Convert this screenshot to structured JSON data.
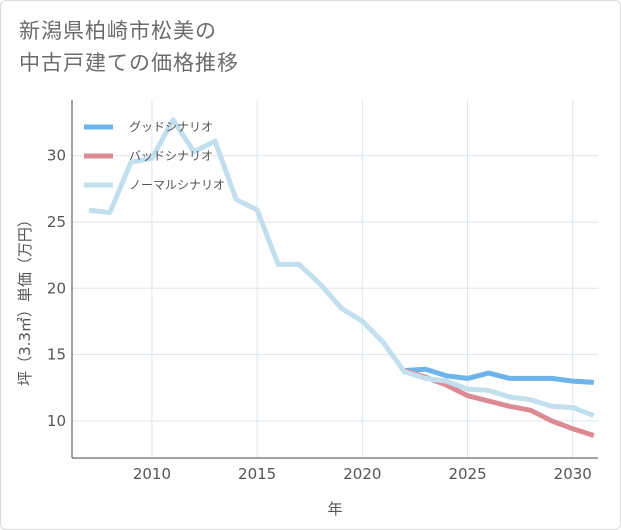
{
  "title": "新潟県柏崎市松美の\n中古戸建ての価格推移",
  "chart_data": {
    "type": "line",
    "xlabel": "年",
    "ylabel": "坪（3.3㎡）単価（万円）",
    "xlim": [
      2006.2,
      2031.2
    ],
    "ylim": [
      7.2,
      34.2
    ],
    "xticks": [
      2010,
      2015,
      2020,
      2025,
      2030
    ],
    "yticks": [
      10,
      15,
      20,
      25,
      30
    ],
    "grid": true,
    "legend_position": "top-left",
    "series": [
      {
        "name": "グッドシナリオ",
        "color": "#6cb4ea",
        "x": [
          2022,
          2023,
          2024,
          2025,
          2026,
          2027,
          2028,
          2029,
          2030,
          2031
        ],
        "values": [
          13.8,
          13.9,
          13.4,
          13.2,
          13.6,
          13.2,
          13.2,
          13.2,
          13.0,
          12.9
        ]
      },
      {
        "name": "バッドシナリオ",
        "color": "#dc8a94",
        "x": [
          2022,
          2023,
          2024,
          2025,
          2026,
          2027,
          2028,
          2029,
          2030,
          2031
        ],
        "values": [
          13.8,
          13.3,
          12.7,
          11.9,
          11.5,
          11.1,
          10.8,
          10.0,
          9.4,
          8.9
        ]
      },
      {
        "name": "ノーマルシナリオ",
        "color": "#c2dfee",
        "x": [
          2007,
          2008,
          2009,
          2010,
          2011,
          2012,
          2013,
          2014,
          2015,
          2016,
          2017,
          2018,
          2019,
          2020,
          2021,
          2022,
          2023,
          2024,
          2025,
          2026,
          2027,
          2028,
          2029,
          2030,
          2031
        ],
        "values": [
          25.9,
          25.7,
          29.5,
          29.8,
          32.7,
          30.3,
          31.1,
          26.7,
          25.9,
          21.8,
          21.8,
          20.3,
          18.5,
          17.5,
          15.9,
          13.7,
          13.2,
          13.0,
          12.4,
          12.3,
          11.8,
          11.6,
          11.1,
          11.0,
          10.4
        ]
      }
    ]
  }
}
